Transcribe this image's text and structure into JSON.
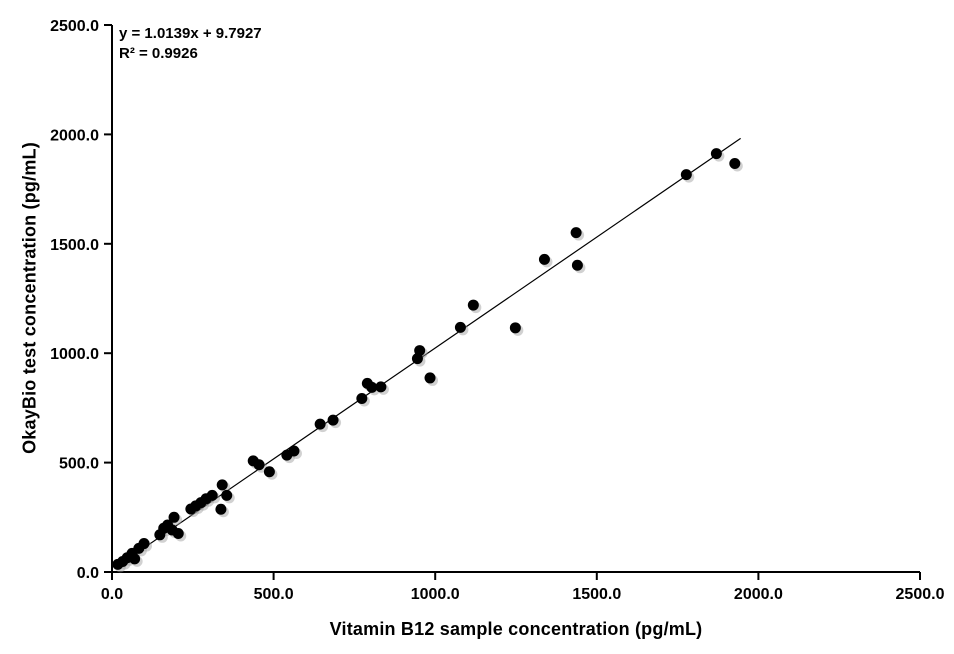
{
  "chart_data": {
    "type": "scatter",
    "title": "",
    "xlabel": "Vitamin B12 sample concentration (pg/mL)",
    "ylabel": "OkayBio test concentration (pg/mL)",
    "xlim": [
      0,
      2500
    ],
    "ylim": [
      0,
      2500
    ],
    "xticks": [
      0,
      500,
      1000,
      1500,
      2000,
      2500
    ],
    "yticks": [
      0,
      500,
      1000,
      1500,
      2000,
      2500
    ],
    "xtick_labels": [
      "0.0",
      "500.0",
      "1000.0",
      "1500.0",
      "2000.0",
      "2500.0"
    ],
    "ytick_labels": [
      "0.0",
      "500.0",
      "1000.0",
      "1500.0",
      "2000.0",
      "2500.0"
    ],
    "grid": false,
    "legend_position": "none",
    "marker": {
      "shape": "circle",
      "color": "#000000",
      "radius": 5.5,
      "shadow_color": "#999999",
      "shadow_opacity": 0.45,
      "shadow_offset": 2.5
    },
    "axis_color": "#000000",
    "trendline": {
      "slope": 1.0139,
      "intercept": 9.7927,
      "r_squared": 0.9926,
      "x_start": 20,
      "x_end": 1945,
      "color": "#000000",
      "equation_label": "y = 1.0139x + 9.7927",
      "r_squared_label": "R² = 0.9926"
    },
    "points": [
      [
        18,
        35
      ],
      [
        33,
        48
      ],
      [
        47,
        65
      ],
      [
        62,
        85
      ],
      [
        70,
        60
      ],
      [
        83,
        108
      ],
      [
        99,
        130
      ],
      [
        148,
        170
      ],
      [
        160,
        200
      ],
      [
        172,
        215
      ],
      [
        186,
        192
      ],
      [
        192,
        250
      ],
      [
        205,
        176
      ],
      [
        244,
        288
      ],
      [
        259,
        302
      ],
      [
        275,
        317
      ],
      [
        291,
        335
      ],
      [
        310,
        350
      ],
      [
        337,
        287
      ],
      [
        341,
        398
      ],
      [
        355,
        350
      ],
      [
        437,
        508
      ],
      [
        455,
        490
      ],
      [
        487,
        458
      ],
      [
        541,
        534
      ],
      [
        563,
        553
      ],
      [
        644,
        676
      ],
      [
        684,
        694
      ],
      [
        773,
        793
      ],
      [
        790,
        862
      ],
      [
        804,
        844
      ],
      [
        832,
        846
      ],
      [
        945,
        975
      ],
      [
        952,
        1012
      ],
      [
        984,
        887
      ],
      [
        1078,
        1118
      ],
      [
        1118,
        1220
      ],
      [
        1248,
        1116
      ],
      [
        1338,
        1429
      ],
      [
        1436,
        1551
      ],
      [
        1440,
        1402
      ],
      [
        1777,
        1816
      ],
      [
        1870,
        1912
      ],
      [
        1927,
        1867
      ]
    ]
  }
}
